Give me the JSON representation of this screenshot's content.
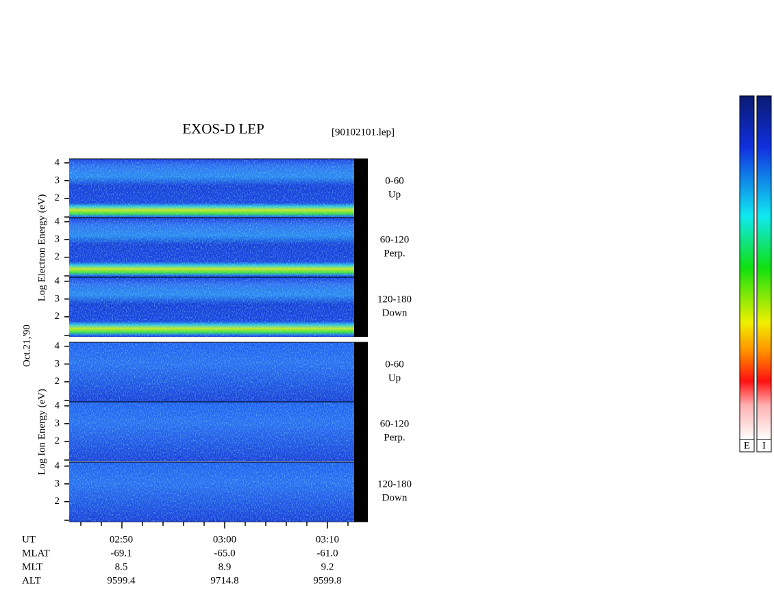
{
  "title": "EXOS-D LEP",
  "file": "[90102101.lep]",
  "date": "Oct.21,'90",
  "species": [
    {
      "axis_label": "Log   Electron   Energy (eV)",
      "panels": [
        {
          "pitch": "0-60",
          "direction": "Up"
        },
        {
          "pitch": "60-120",
          "direction": "Perp."
        },
        {
          "pitch": "120-180",
          "direction": "Down"
        }
      ]
    },
    {
      "axis_label": "Log   Ion   Energy (eV)",
      "panels": [
        {
          "pitch": "0-60",
          "direction": "Up"
        },
        {
          "pitch": "60-120",
          "direction": "Perp."
        },
        {
          "pitch": "120-180",
          "direction": "Down"
        }
      ]
    }
  ],
  "ylim": [
    0.95,
    4.15
  ],
  "yticks": [
    2,
    3,
    4
  ],
  "orbit": [
    {
      "label": "UT",
      "values": [
        "02:50",
        "03:00",
        "03:10"
      ]
    },
    {
      "label": "MLAT",
      "values": [
        "-69.1",
        "-65.0",
        "-61.0"
      ]
    },
    {
      "label": "MLT",
      "values": [
        "8.5",
        "8.9",
        "9.2"
      ]
    },
    {
      "label": "ALT",
      "values": [
        "9599.4",
        "9714.8",
        "9599.8"
      ]
    }
  ],
  "colorbars": [
    "E",
    "I"
  ]
}
